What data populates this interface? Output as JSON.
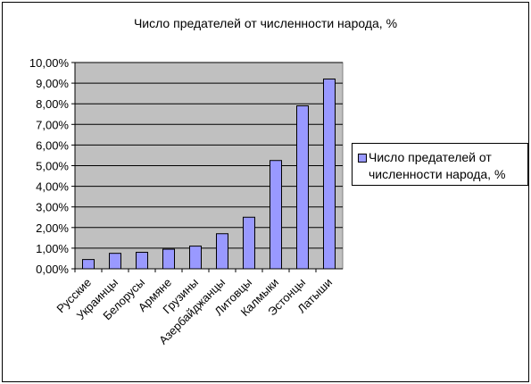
{
  "chart_data": {
    "type": "bar",
    "title": "Число предателей от численности народа, %",
    "categories": [
      "Русские",
      "Украинцы",
      "Белорусы",
      "Армяне",
      "Грузины",
      "Азербайджанцы",
      "Литовцы",
      "Калмыки",
      "Эстонцы",
      "Латыши"
    ],
    "series": [
      {
        "name": "Число предателей от численности народа, %",
        "values": [
          0.45,
          0.75,
          0.8,
          0.95,
          1.1,
          1.7,
          2.5,
          5.25,
          7.9,
          9.2
        ]
      }
    ],
    "ylim": [
      0,
      10
    ],
    "yticks": [
      "0,00%",
      "1,00%",
      "2,00%",
      "3,00%",
      "4,00%",
      "5,00%",
      "6,00%",
      "7,00%",
      "8,00%",
      "9,00%",
      "10,00%"
    ],
    "grid": true,
    "legend": "right",
    "colors": {
      "bar": "#9999ff",
      "plot_background": "#c0c0c0",
      "grid": "#000000"
    }
  }
}
